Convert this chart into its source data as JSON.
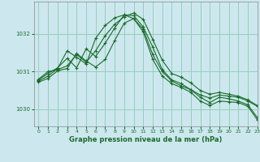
{
  "title": "Graphe pression niveau de la mer (hPa)",
  "background_color": "#cce8ee",
  "grid_color": "#99ccbb",
  "line_color": "#1a6b2a",
  "xlim": [
    -0.5,
    23
  ],
  "ylim": [
    1029.55,
    1032.85
  ],
  "yticks": [
    1030,
    1031,
    1032
  ],
  "xticks": [
    0,
    1,
    2,
    3,
    4,
    5,
    6,
    7,
    8,
    9,
    10,
    11,
    12,
    13,
    14,
    15,
    16,
    17,
    18,
    19,
    20,
    21,
    22,
    23
  ],
  "series": [
    [
      1030.8,
      1031.0,
      1031.05,
      1031.15,
      1031.45,
      1031.25,
      1031.55,
      1031.95,
      1032.25,
      1032.45,
      1032.55,
      1032.38,
      1031.85,
      1031.3,
      1030.95,
      1030.85,
      1030.7,
      1030.5,
      1030.4,
      1030.45,
      1030.4,
      1030.35,
      1030.25,
      1030.1
    ],
    [
      1030.78,
      1030.95,
      1031.1,
      1031.35,
      1031.1,
      1031.6,
      1031.4,
      1031.75,
      1032.15,
      1032.5,
      1032.4,
      1032.12,
      1031.45,
      1031.0,
      1030.75,
      1030.62,
      1030.52,
      1030.38,
      1030.3,
      1030.38,
      1030.35,
      1030.32,
      1030.22,
      1030.08
    ],
    [
      1030.75,
      1030.88,
      1031.08,
      1031.55,
      1031.38,
      1031.2,
      1031.88,
      1032.22,
      1032.42,
      1032.5,
      1032.48,
      1032.18,
      1031.65,
      1031.05,
      1030.78,
      1030.68,
      1030.52,
      1030.32,
      1030.18,
      1030.32,
      1030.28,
      1030.22,
      1030.12,
      1029.78
    ],
    [
      1030.72,
      1030.82,
      1031.02,
      1031.08,
      1031.48,
      1031.28,
      1031.12,
      1031.32,
      1031.82,
      1032.28,
      1032.4,
      1032.05,
      1031.32,
      1030.88,
      1030.68,
      1030.58,
      1030.45,
      1030.22,
      1030.1,
      1030.22,
      1030.2,
      1030.18,
      1030.08,
      1029.72
    ]
  ]
}
